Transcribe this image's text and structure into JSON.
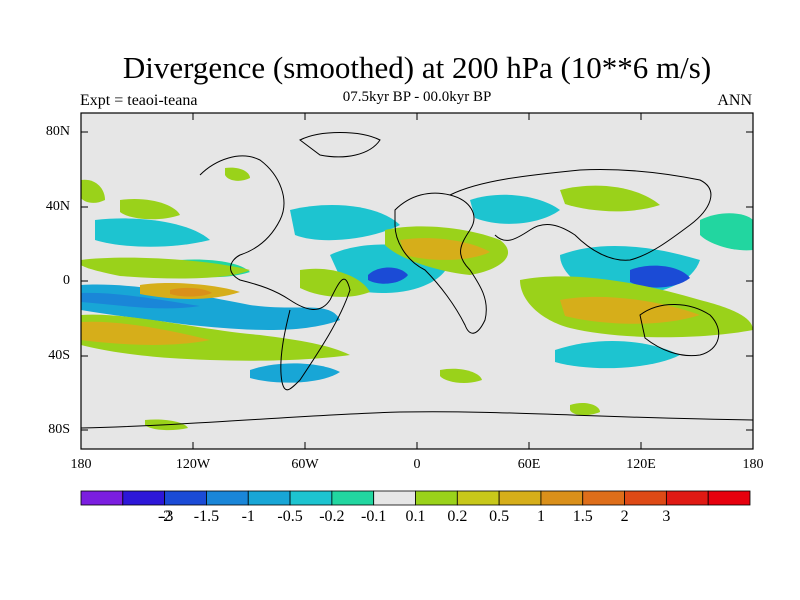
{
  "title": "Divergence (smoothed) at 200 hPa (10**6 m/s)",
  "subtitle": "07.5kyr BP - 00.0kyr BP",
  "left_label": "Expt = teaoi-teana",
  "right_label": "ANN",
  "y_ticks": [
    "80N",
    "40N",
    "0",
    "40S",
    "80S"
  ],
  "x_ticks": [
    "180",
    "120W",
    "60W",
    "0",
    "60E",
    "120E",
    "180"
  ],
  "colorbar": {
    "colors": [
      "#7b1ee0",
      "#2d17d8",
      "#1b4bd6",
      "#1a86d8",
      "#18a6d6",
      "#1dc4d0",
      "#22d6a0",
      "#e6e6e6",
      "#9ad21a",
      "#c8c81a",
      "#d6ae1a",
      "#da901a",
      "#de6e1a",
      "#de4a16",
      "#e01a14",
      "#e6000e"
    ],
    "labels": [
      "-3",
      "-2",
      "-1.5",
      "-1",
      "-0.5",
      "-0.2",
      "-0.1",
      "0.1",
      "0.2",
      "0.5",
      "1",
      "1.5",
      "2",
      "3"
    ]
  }
}
